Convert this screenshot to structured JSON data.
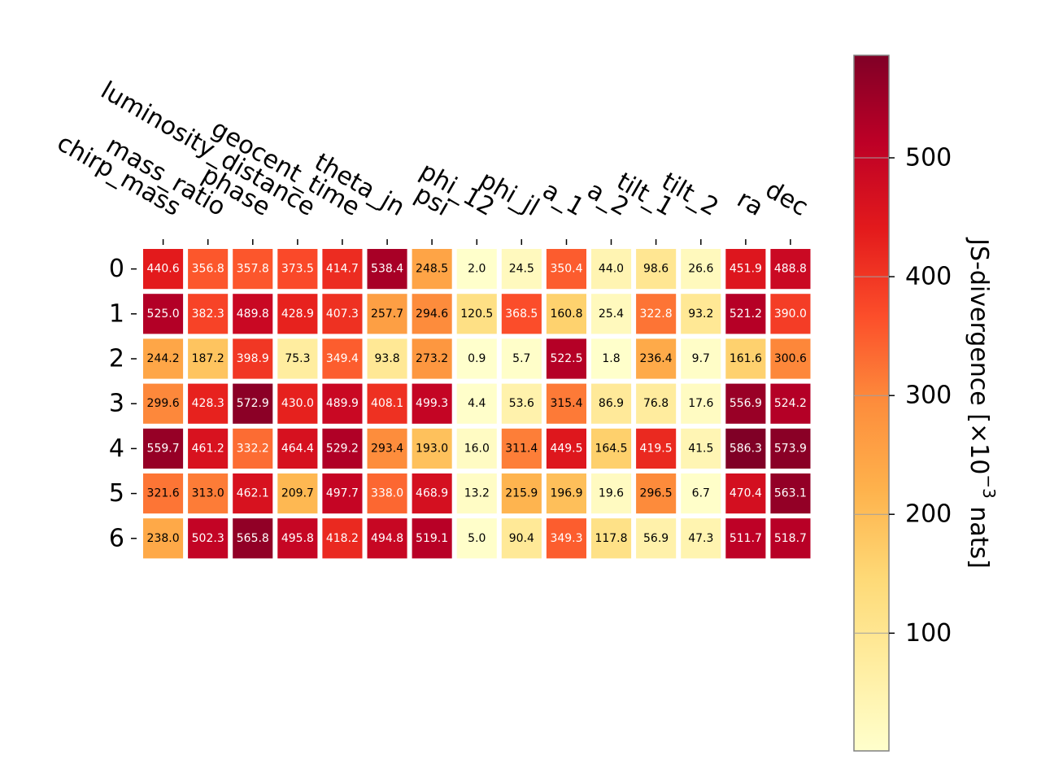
{
  "chart_data": {
    "type": "heatmap",
    "title": "",
    "x_labels": [
      "chirp_mass",
      "mass_ratio",
      "phase",
      "luminosity_distance",
      "geocent_time",
      "theta_jn",
      "psi",
      "phi_12",
      "phi_jl",
      "a_1",
      "a_2",
      "tilt_1",
      "tilt_2",
      "ra",
      "dec"
    ],
    "y_labels": [
      "0",
      "1",
      "2",
      "3",
      "4",
      "5",
      "6"
    ],
    "values": [
      [
        440.6,
        356.8,
        357.8,
        373.5,
        414.7,
        538.4,
        248.5,
        2.0,
        24.5,
        350.4,
        44.0,
        98.6,
        26.6,
        451.9,
        488.8
      ],
      [
        525.0,
        382.3,
        489.8,
        428.9,
        407.3,
        257.7,
        294.6,
        120.5,
        368.5,
        160.8,
        25.4,
        322.8,
        93.2,
        521.2,
        390.0
      ],
      [
        244.2,
        187.2,
        398.9,
        75.3,
        349.4,
        93.8,
        273.2,
        0.9,
        5.7,
        522.5,
        1.8,
        236.4,
        9.7,
        161.6,
        300.6
      ],
      [
        299.6,
        428.3,
        572.9,
        430.0,
        489.9,
        408.1,
        499.3,
        4.4,
        53.6,
        315.4,
        86.9,
        76.8,
        17.6,
        556.9,
        524.2
      ],
      [
        559.7,
        461.2,
        332.2,
        464.4,
        529.2,
        293.4,
        193.0,
        16.0,
        311.4,
        449.5,
        164.5,
        419.5,
        41.5,
        586.3,
        573.9
      ],
      [
        321.6,
        313.0,
        462.1,
        209.7,
        497.7,
        338.0,
        468.9,
        13.2,
        215.9,
        196.9,
        19.6,
        296.5,
        6.7,
        470.4,
        563.1
      ],
      [
        238.0,
        502.3,
        565.8,
        495.8,
        418.2,
        494.8,
        519.1,
        5.0,
        90.4,
        349.3,
        117.8,
        56.9,
        47.3,
        511.7,
        518.7
      ]
    ],
    "colorbar": {
      "label_main": "JS-divergence [×10",
      "label_exp": "−3",
      "label_unit": " nats]",
      "ticks": [
        100,
        200,
        300,
        400,
        500
      ],
      "range": [
        0.9,
        586.3
      ],
      "colormap": "YlOrRd"
    },
    "grid": false
  }
}
